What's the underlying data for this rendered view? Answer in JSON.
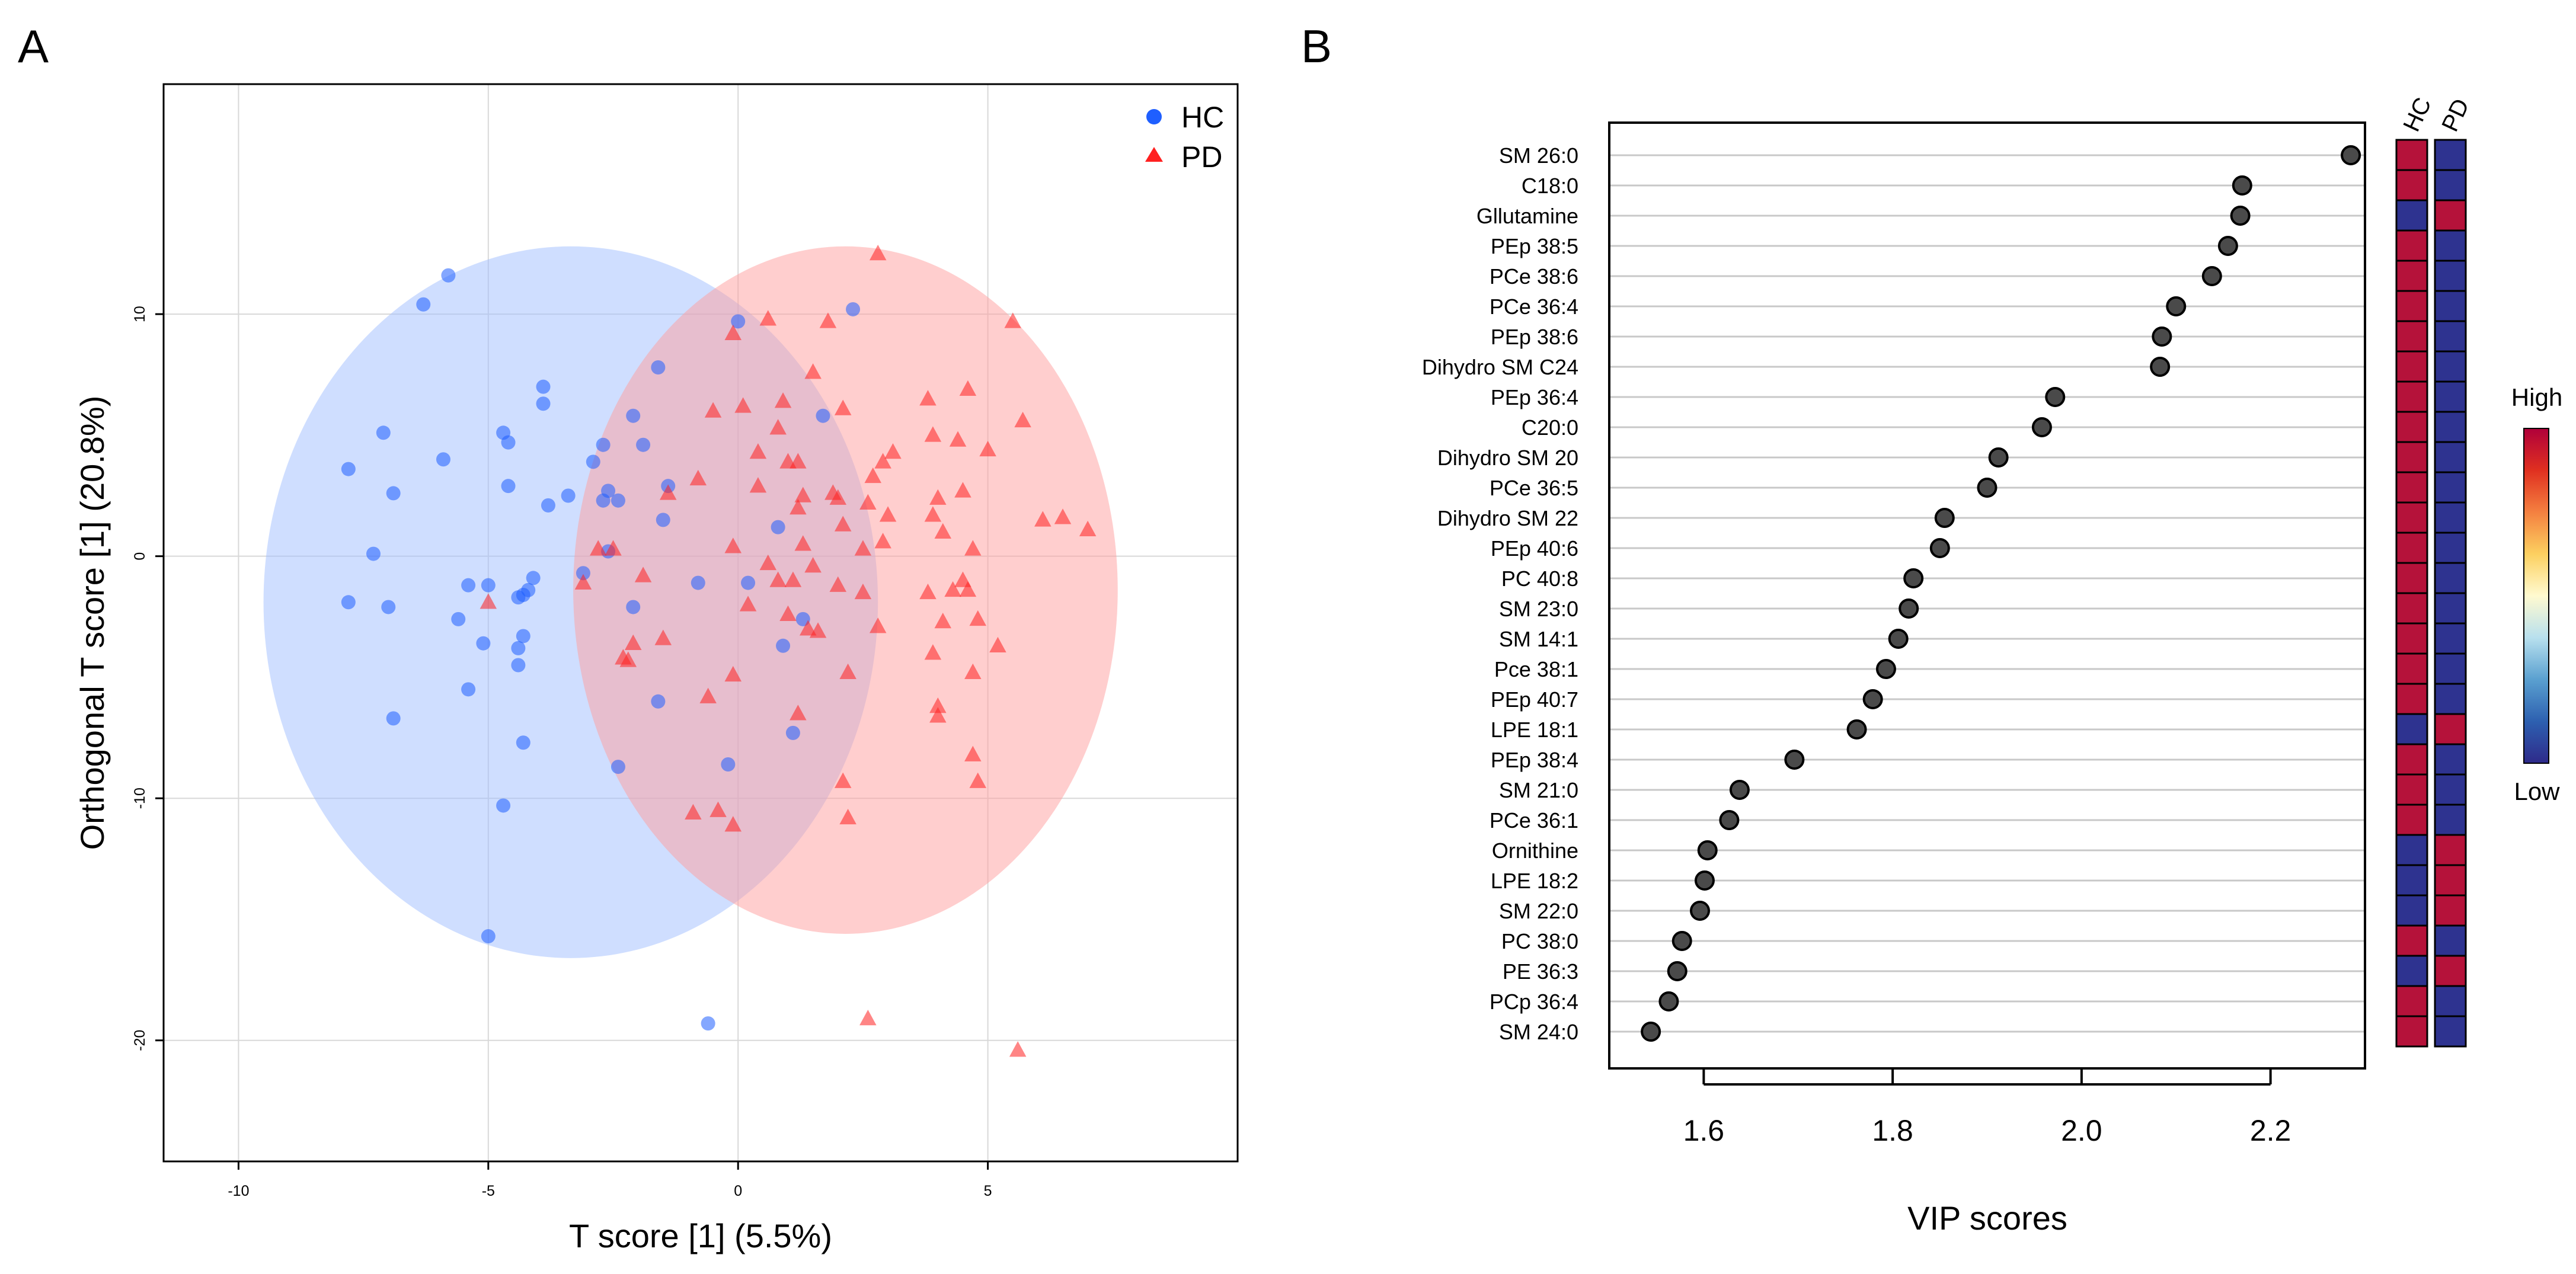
{
  "chart_data": [
    {
      "type": "scatter",
      "panel": "A",
      "xlabel": "T score [1] (5.5%)",
      "ylabel": "Orthogonal T score [1] (20.8%)",
      "xlim": [
        -11.5,
        10
      ],
      "ylim": [
        -25,
        19.5
      ],
      "xticks": [
        -10,
        -5,
        0,
        5
      ],
      "yticks": [
        -20,
        -10,
        0,
        10
      ],
      "grid": true,
      "legend_position": "top-right",
      "colors": {
        "HC": "#1f5fff",
        "PD": "#ff2020",
        "HC_ellipse": "#9fbdff",
        "PD_ellipse": "#ff9d9d"
      },
      "ellipses": [
        {
          "name": "HC",
          "center": [
            -3.35,
            -1.9
          ],
          "radii": [
            6.15,
            14.7
          ]
        },
        {
          "name": "PD",
          "center": [
            2.15,
            -1.4
          ],
          "radii": [
            5.45,
            14.2
          ]
        }
      ],
      "series": [
        {
          "name": "HC",
          "marker": "circle",
          "points": [
            [
              -5.8,
              11.6
            ],
            [
              -6.3,
              10.4
            ],
            [
              2.3,
              10.2
            ],
            [
              0,
              9.7
            ],
            [
              -1.6,
              7.8
            ],
            [
              -3.9,
              7.0
            ],
            [
              -3.9,
              6.3
            ],
            [
              -2.1,
              5.8
            ],
            [
              1.7,
              5.8
            ],
            [
              -7.1,
              5.1
            ],
            [
              -4.7,
              5.1
            ],
            [
              -4.6,
              4.7
            ],
            [
              -2.7,
              4.6
            ],
            [
              -1.9,
              4.6
            ],
            [
              -5.9,
              4.0
            ],
            [
              -7.8,
              3.6
            ],
            [
              -2.9,
              3.9
            ],
            [
              -4.6,
              2.9
            ],
            [
              -2.6,
              2.7
            ],
            [
              -1.4,
              2.9
            ],
            [
              -6.9,
              2.6
            ],
            [
              -3.4,
              2.5
            ],
            [
              -2.7,
              2.3
            ],
            [
              -2.4,
              2.3
            ],
            [
              -3.8,
              2.1
            ],
            [
              -1.5,
              1.5
            ],
            [
              0.8,
              1.2
            ],
            [
              -7.3,
              0.1
            ],
            [
              -2.6,
              0.2
            ],
            [
              -3.1,
              -0.7
            ],
            [
              -4.1,
              -0.9
            ],
            [
              -5.4,
              -1.2
            ],
            [
              -5.0,
              -1.2
            ],
            [
              -4.2,
              -1.4
            ],
            [
              -4.4,
              -1.7
            ],
            [
              -4.3,
              -1.6
            ],
            [
              -7.8,
              -1.9
            ],
            [
              -7.0,
              -2.1
            ],
            [
              -2.1,
              -2.1
            ],
            [
              -0.8,
              -1.1
            ],
            [
              0.2,
              -1.1
            ],
            [
              1.3,
              -2.6
            ],
            [
              -5.6,
              -2.6
            ],
            [
              -4.3,
              -3.3
            ],
            [
              -5.1,
              -3.6
            ],
            [
              -4.4,
              -3.8
            ],
            [
              -4.4,
              -4.5
            ],
            [
              0.9,
              -3.7
            ],
            [
              -5.4,
              -5.5
            ],
            [
              -1.6,
              -6.0
            ],
            [
              -6.9,
              -6.7
            ],
            [
              1.1,
              -7.3
            ],
            [
              -4.3,
              -7.7
            ],
            [
              -2.4,
              -8.7
            ],
            [
              -0.2,
              -8.6
            ],
            [
              -4.7,
              -10.3
            ],
            [
              -5.0,
              -15.7
            ],
            [
              -0.6,
              -19.3
            ]
          ]
        },
        {
          "name": "PD",
          "marker": "triangle",
          "points": [
            [
              2.8,
              12.5
            ],
            [
              0.6,
              9.8
            ],
            [
              -0.1,
              9.2
            ],
            [
              1.8,
              9.7
            ],
            [
              5.5,
              9.7
            ],
            [
              1.5,
              7.6
            ],
            [
              4.6,
              6.9
            ],
            [
              3.8,
              6.5
            ],
            [
              -0.5,
              6.0
            ],
            [
              0.1,
              6.2
            ],
            [
              0.9,
              6.4
            ],
            [
              2.1,
              6.1
            ],
            [
              5.7,
              5.6
            ],
            [
              0.8,
              5.3
            ],
            [
              3.9,
              5.0
            ],
            [
              4.4,
              4.8
            ],
            [
              0.4,
              4.3
            ],
            [
              1.0,
              3.9
            ],
            [
              1.2,
              3.9
            ],
            [
              2.9,
              3.9
            ],
            [
              5.0,
              4.4
            ],
            [
              2.7,
              3.3
            ],
            [
              3.1,
              4.3
            ],
            [
              -0.8,
              3.2
            ],
            [
              0.4,
              2.9
            ],
            [
              1.3,
              2.5
            ],
            [
              2.0,
              2.4
            ],
            [
              4.5,
              2.7
            ],
            [
              4.0,
              2.4
            ],
            [
              2.6,
              2.2
            ],
            [
              3.0,
              1.7
            ],
            [
              -1.4,
              2.6
            ],
            [
              1.2,
              2.0
            ],
            [
              1.9,
              2.6
            ],
            [
              6.1,
              1.5
            ],
            [
              6.5,
              1.6
            ],
            [
              7.0,
              1.1
            ],
            [
              2.1,
              1.3
            ],
            [
              3.9,
              1.7
            ],
            [
              4.1,
              1.0
            ],
            [
              2.9,
              0.6
            ],
            [
              2.5,
              0.3
            ],
            [
              1.3,
              0.5
            ],
            [
              -0.1,
              0.4
            ],
            [
              -2.8,
              0.3
            ],
            [
              -2.5,
              0.3
            ],
            [
              4.7,
              0.3
            ],
            [
              0.6,
              -0.3
            ],
            [
              1.5,
              -0.4
            ],
            [
              -1.9,
              -0.8
            ],
            [
              -3.1,
              -1.1
            ],
            [
              0.8,
              -1.0
            ],
            [
              1.1,
              -1.0
            ],
            [
              2.0,
              -1.2
            ],
            [
              4.5,
              -1.0
            ],
            [
              2.5,
              -1.5
            ],
            [
              3.8,
              -1.5
            ],
            [
              4.3,
              -1.4
            ],
            [
              4.6,
              -1.4
            ],
            [
              -5.0,
              -1.9
            ],
            [
              0.2,
              -2.0
            ],
            [
              1.0,
              -2.4
            ],
            [
              1.4,
              -3.0
            ],
            [
              2.8,
              -2.9
            ],
            [
              4.1,
              -2.7
            ],
            [
              4.8,
              -2.6
            ],
            [
              5.2,
              -3.7
            ],
            [
              -1.5,
              -3.4
            ],
            [
              -2.1,
              -3.6
            ],
            [
              1.6,
              -3.1
            ],
            [
              -2.3,
              -4.2
            ],
            [
              -2.2,
              -4.3
            ],
            [
              2.2,
              -4.8
            ],
            [
              3.9,
              -4.0
            ],
            [
              4.7,
              -4.8
            ],
            [
              -0.1,
              -4.9
            ],
            [
              -0.6,
              -5.8
            ],
            [
              1.2,
              -6.5
            ],
            [
              4.0,
              -6.2
            ],
            [
              4.0,
              -6.6
            ],
            [
              4.7,
              -8.2
            ],
            [
              2.1,
              -9.3
            ],
            [
              4.8,
              -9.3
            ],
            [
              -0.9,
              -10.6
            ],
            [
              -0.4,
              -10.5
            ],
            [
              -0.1,
              -11.1
            ],
            [
              2.2,
              -10.8
            ],
            [
              2.6,
              -19.1
            ],
            [
              5.6,
              -20.4
            ]
          ]
        }
      ]
    },
    {
      "type": "dot",
      "panel": "B",
      "xlabel": "VIP scores",
      "xlim": [
        1.5,
        2.3
      ],
      "xticks": [
        "1.6",
        "1.8",
        "2.0",
        "2.2"
      ],
      "categories": [
        "SM 26:0",
        "C18:0",
        "Gllutamine",
        "PEp 38:5",
        "PCe 38:6",
        "PCe 36:4",
        "PEp 38:6",
        "Dihydro SM C24",
        "PEp 36:4",
        "C20:0",
        "Dihydro SM 20",
        "PCe 36:5",
        "Dihydro SM 22",
        "PEp 40:6",
        "PC 40:8",
        "SM 23:0",
        "SM 14:1",
        "Pce 38:1",
        "PEp 40:7",
        "LPE 18:1",
        "PEp 38:4",
        "SM 21:0",
        "PCe 36:1",
        "Ornithine",
        "LPE 18:2",
        "SM 22:0",
        "PC 38:0",
        "PE 36:3",
        "PCp 36:4",
        "SM 24:0"
      ],
      "values": [
        2.285,
        2.17,
        2.168,
        2.155,
        2.138,
        2.1,
        2.085,
        2.083,
        1.972,
        1.958,
        1.912,
        1.9,
        1.855,
        1.85,
        1.822,
        1.817,
        1.806,
        1.793,
        1.779,
        1.762,
        1.696,
        1.638,
        1.627,
        1.604,
        1.601,
        1.596,
        1.577,
        1.572,
        1.563,
        1.544
      ],
      "heatmap": {
        "columns": [
          "HC",
          "PD"
        ],
        "levels": [
          [
            "high",
            "low"
          ],
          [
            "high",
            "low"
          ],
          [
            "low",
            "high"
          ],
          [
            "high",
            "low"
          ],
          [
            "high",
            "low"
          ],
          [
            "high",
            "low"
          ],
          [
            "high",
            "low"
          ],
          [
            "high",
            "low"
          ],
          [
            "high",
            "low"
          ],
          [
            "high",
            "low"
          ],
          [
            "high",
            "low"
          ],
          [
            "high",
            "low"
          ],
          [
            "high",
            "low"
          ],
          [
            "high",
            "low"
          ],
          [
            "high",
            "low"
          ],
          [
            "high",
            "low"
          ],
          [
            "high",
            "low"
          ],
          [
            "high",
            "low"
          ],
          [
            "high",
            "low"
          ],
          [
            "low",
            "high"
          ],
          [
            "high",
            "low"
          ],
          [
            "high",
            "low"
          ],
          [
            "high",
            "low"
          ],
          [
            "low",
            "high"
          ],
          [
            "low",
            "high"
          ],
          [
            "low",
            "high"
          ],
          [
            "high",
            "low"
          ],
          [
            "low",
            "high"
          ],
          [
            "high",
            "low"
          ],
          [
            "high",
            "low"
          ]
        ],
        "colors": {
          "high": "#b5123a",
          "low": "#2e3390"
        }
      },
      "colorbar": {
        "high_label": "High",
        "low_label": "Low",
        "stops": [
          "#b0003a",
          "#e03020",
          "#f48040",
          "#fcd060",
          "#fffad0",
          "#b8e0ee",
          "#5aa0d0",
          "#2d60b0",
          "#2e2a8a"
        ]
      }
    }
  ],
  "panel_labels": [
    "A",
    "B"
  ]
}
